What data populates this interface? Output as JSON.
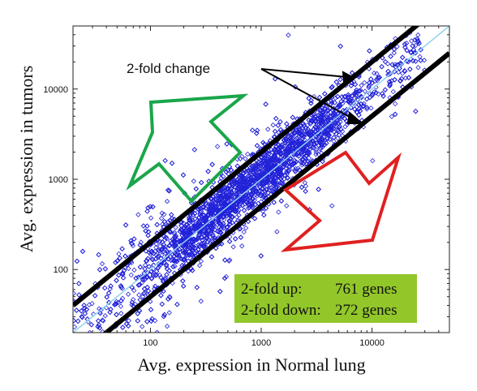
{
  "chart_data": {
    "type": "scatter",
    "title": "",
    "xlabel": "Avg. expression in Normal lung",
    "ylabel": "Avg. expression in tumors",
    "x_scale": "log",
    "y_scale": "log",
    "xlim": [
      20,
      50000
    ],
    "ylim": [
      20,
      50000
    ],
    "x_ticks": [
      {
        "value": 100,
        "label": "100"
      },
      {
        "value": 1000,
        "label": "1000"
      },
      {
        "value": 10000,
        "label": "10000"
      }
    ],
    "y_ticks": [
      {
        "value": 100,
        "label": "100"
      },
      {
        "value": 1000,
        "label": "1000"
      },
      {
        "value": 10000,
        "label": "10000"
      }
    ],
    "grid": false,
    "colors": {
      "points": "#2323d8",
      "identity_line": "#8fd3ee",
      "fold_lines": "#000000",
      "up_arrow": "#1aa64a",
      "down_arrow": "#e02020",
      "summary_box": "#92c72a"
    },
    "point_cloud": {
      "n_points": 6000,
      "x_range": [
        20,
        30000
      ],
      "description_shape": "diamond markers clustered along the diagonal"
    },
    "reference_lines": [
      {
        "name": "identity",
        "slope": 1,
        "y_at_x1": 1
      },
      {
        "name": "2-fold up",
        "slope": 1,
        "y_at_x1": 2
      },
      {
        "name": "2-fold down",
        "slope": 1,
        "y_at_x1": 0.5
      }
    ],
    "annotations": {
      "fold_label": "2-fold change",
      "summary": [
        {
          "label": "2-fold up:",
          "value": "761 genes"
        },
        {
          "label": "2-fold down:",
          "value": "272 genes"
        }
      ]
    }
  }
}
